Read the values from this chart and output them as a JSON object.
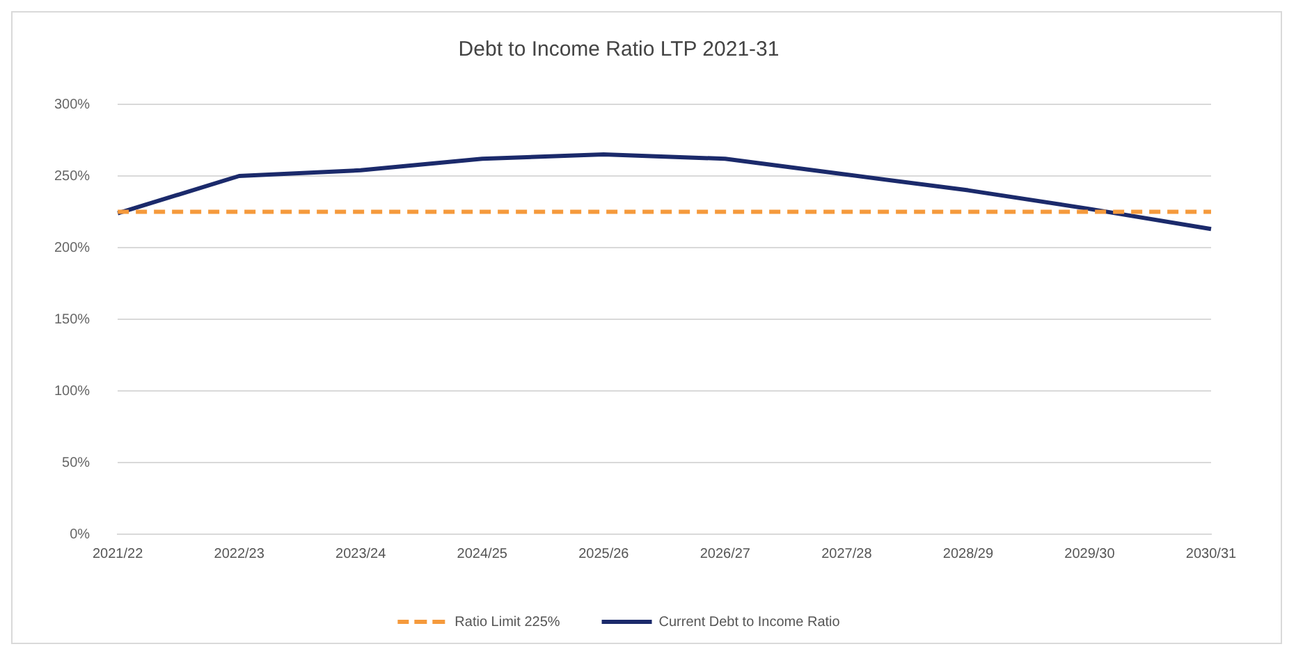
{
  "chart_data": {
    "type": "line",
    "title": "Debt to Income Ratio LTP 2021-31",
    "categories": [
      "2021/22",
      "2022/23",
      "2023/24",
      "2024/25",
      "2025/26",
      "2026/27",
      "2027/28",
      "2028/29",
      "2029/30",
      "2030/31"
    ],
    "series": [
      {
        "name": "Ratio Limit 225%",
        "color": "#f59a3c",
        "line_style": "dashed",
        "values": [
          225,
          225,
          225,
          225,
          225,
          225,
          225,
          225,
          225,
          225
        ]
      },
      {
        "name": "Current Debt to Income Ratio",
        "color": "#1b2a6b",
        "line_style": "solid",
        "values": [
          224,
          250,
          254,
          262,
          265,
          262,
          251,
          240,
          227,
          213
        ]
      }
    ],
    "ylim": [
      0,
      300
    ],
    "yticks": [
      {
        "value": 0,
        "label": "0%"
      },
      {
        "value": 50,
        "label": "50%"
      },
      {
        "value": 100,
        "label": "100%"
      },
      {
        "value": 150,
        "label": "150%"
      },
      {
        "value": 200,
        "label": "200%"
      },
      {
        "value": 250,
        "label": "250%"
      },
      {
        "value": 300,
        "label": "300%"
      }
    ],
    "grid": "y",
    "legend": "bottom",
    "marker": "none"
  }
}
